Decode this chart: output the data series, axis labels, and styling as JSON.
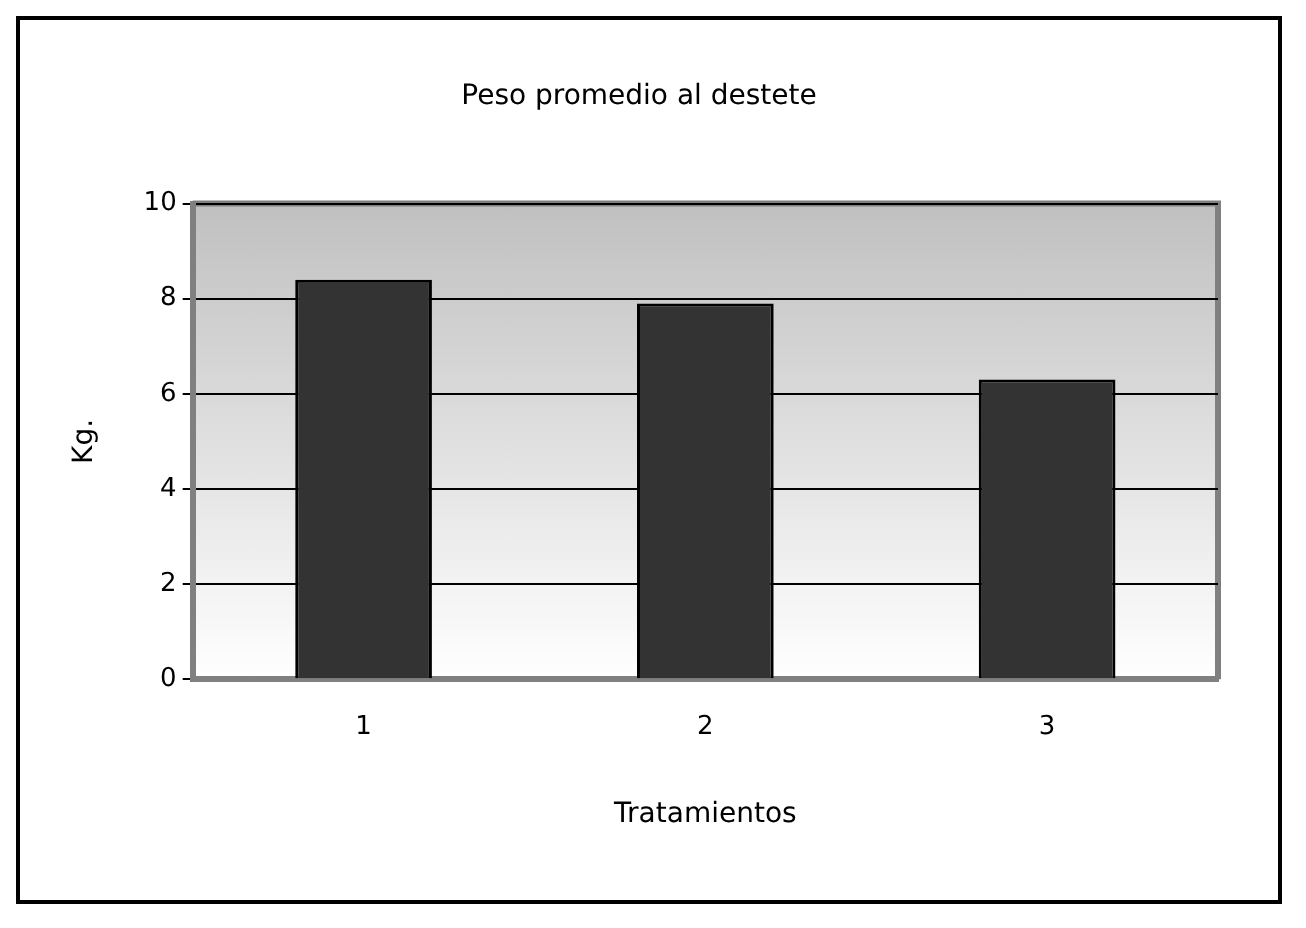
{
  "chart_data": {
    "type": "bar",
    "title": "Peso promedio al destete",
    "xlabel": "Tratamientos",
    "ylabel": "Kg.",
    "categories": [
      "1",
      "2",
      "3"
    ],
    "values": [
      8.4,
      7.9,
      6.3
    ],
    "color": "#333333",
    "ylim": [
      0,
      10
    ],
    "yticks": [
      0,
      2,
      4,
      6,
      8,
      10
    ],
    "grid": "y",
    "legend": false
  }
}
